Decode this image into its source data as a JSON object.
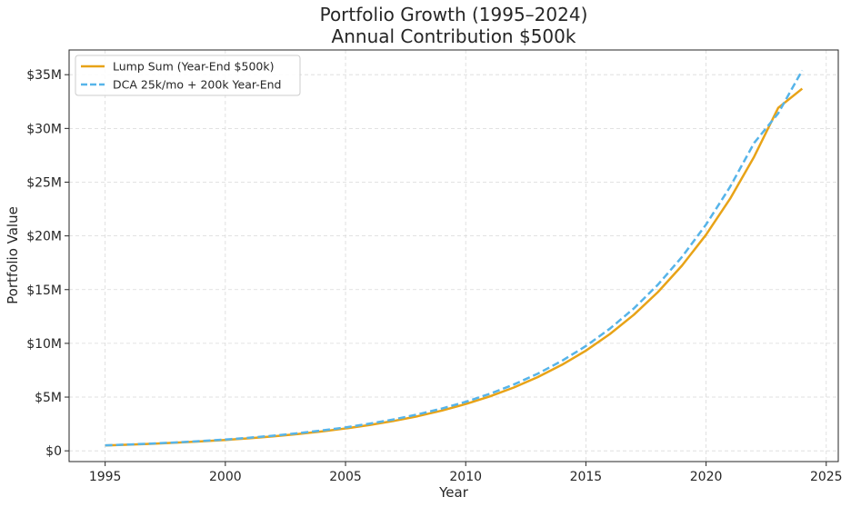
{
  "chart_data": {
    "type": "line",
    "title": "Portfolio Growth (1995–2024)",
    "subtitle": "Annual Contribution $500k",
    "xlabel": "Year",
    "ylabel": "Portfolio Value",
    "xlim": [
      1993.5,
      2025.5
    ],
    "ylim": [
      -1000000,
      37300000
    ],
    "xticks": [
      1995,
      2000,
      2005,
      2010,
      2015,
      2020,
      2025
    ],
    "xtick_labels": [
      "1995",
      "2000",
      "2005",
      "2010",
      "2015",
      "2020",
      "2025"
    ],
    "yticks": [
      0,
      5000000,
      10000000,
      15000000,
      20000000,
      25000000,
      30000000,
      35000000
    ],
    "ytick_labels": [
      "$0",
      "$5M",
      "$10M",
      "$15M",
      "$20M",
      "$25M",
      "$30M",
      "$35M"
    ],
    "grid": true,
    "legend_position": "top-left",
    "x": [
      1995,
      1996,
      1997,
      1998,
      1999,
      2000,
      2001,
      2002,
      2003,
      2004,
      2005,
      2006,
      2007,
      2008,
      2009,
      2010,
      2011,
      2012,
      2013,
      2014,
      2015,
      2016,
      2017,
      2018,
      2019,
      2020,
      2021,
      2022,
      2023,
      2024
    ],
    "series": [
      {
        "name": "Lump Sum (Year-End $500k)",
        "color": "#E8A317",
        "style": "solid",
        "values": [
          500000,
          570000,
          660000,
          760000,
          880000,
          1010000,
          1170000,
          1350000,
          1560000,
          1800000,
          2080000,
          2400000,
          2780000,
          3220000,
          3740000,
          4350000,
          5060000,
          5890000,
          6860000,
          8000000,
          9320000,
          10870000,
          12670000,
          14780000,
          17240000,
          20110000,
          23460000,
          27370000,
          31910000,
          33700000
        ]
      },
      {
        "name": "DCA 25k/mo + 200k Year-End",
        "color": "#56B4E9",
        "style": "dashed",
        "values": [
          510000,
          590000,
          680000,
          790000,
          910000,
          1050000,
          1220000,
          1410000,
          1630000,
          1890000,
          2180000,
          2530000,
          2920000,
          3390000,
          3930000,
          4560000,
          5300000,
          6170000,
          7180000,
          8370000,
          9750000,
          11370000,
          13260000,
          15470000,
          18050000,
          21060000,
          24570000,
          28650000,
          31400000,
          35400000
        ]
      }
    ]
  }
}
